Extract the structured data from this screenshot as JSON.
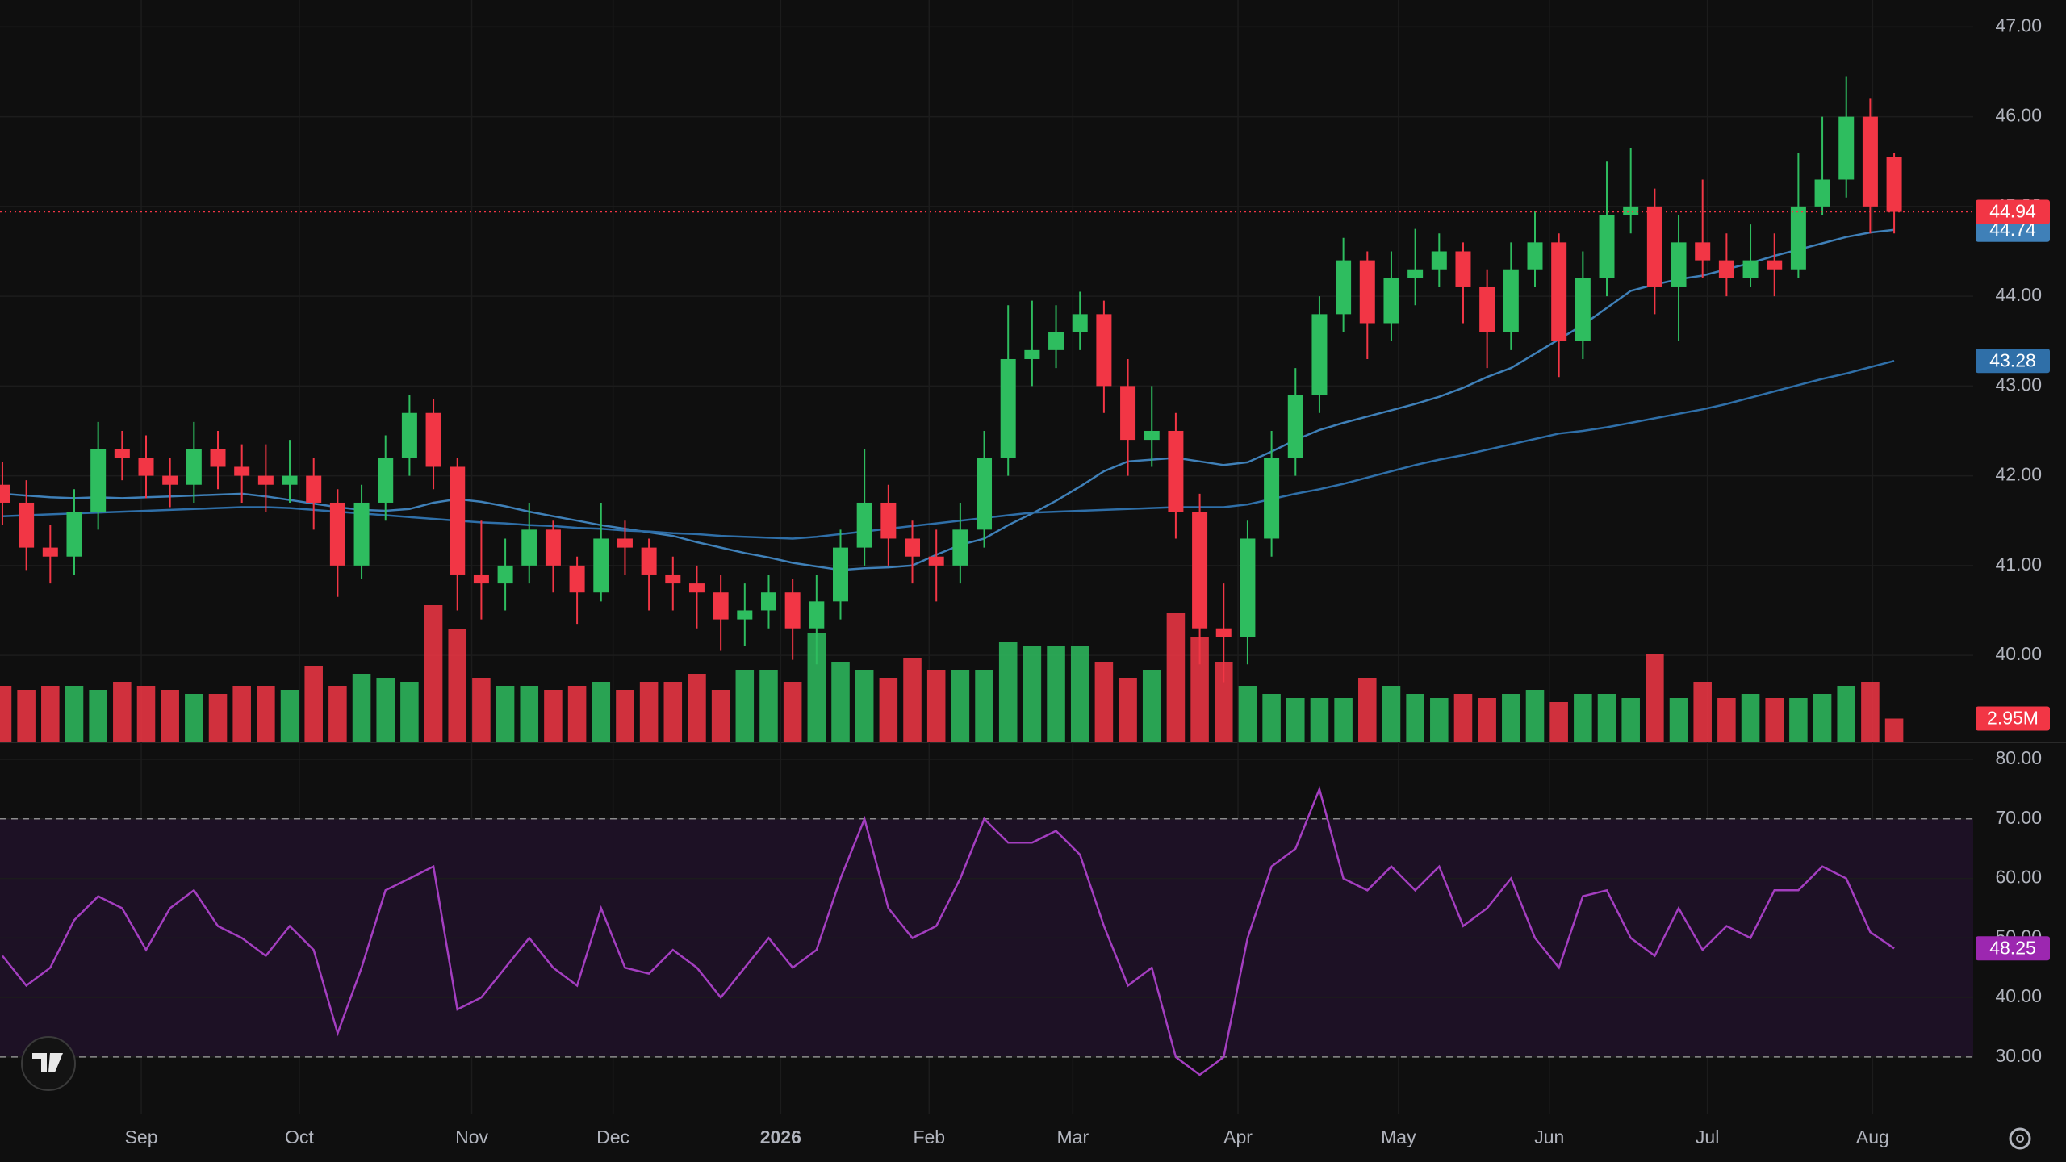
{
  "chart_data": [
    {
      "type": "candlestick",
      "open": [
        41.9,
        41.7,
        41.2,
        41.1,
        41.6,
        42.3,
        42.2,
        42.0,
        41.9,
        42.3,
        42.1,
        42.0,
        41.9,
        42.0,
        41.7,
        41.0,
        41.7,
        42.2,
        42.7,
        42.1,
        40.9,
        40.8,
        41.0,
        41.4,
        41.0,
        40.7,
        41.3,
        41.2,
        40.9,
        40.8,
        40.7,
        40.4,
        40.5,
        40.7,
        40.3,
        40.6,
        41.2,
        41.7,
        41.3,
        41.1,
        41.0,
        41.4,
        42.2,
        43.3,
        43.4,
        43.6,
        43.8,
        43.0,
        42.4,
        42.5,
        41.6,
        40.3,
        40.2,
        41.3,
        42.2,
        42.9,
        43.8,
        44.4,
        43.7,
        44.2,
        44.3,
        44.5,
        44.1,
        43.6,
        44.3,
        44.6,
        43.5,
        44.2,
        44.9,
        45.0,
        44.1,
        44.6,
        44.4,
        44.2,
        44.4,
        44.3,
        45.0,
        45.3,
        46.0,
        45.55
      ],
      "high": [
        42.15,
        41.95,
        41.45,
        41.85,
        42.6,
        42.5,
        42.45,
        42.2,
        42.6,
        42.5,
        42.35,
        42.35,
        42.4,
        42.2,
        41.85,
        41.9,
        42.45,
        42.9,
        42.85,
        42.2,
        41.5,
        41.3,
        41.7,
        41.5,
        41.1,
        41.7,
        41.5,
        41.3,
        41.1,
        41.0,
        40.9,
        40.8,
        40.9,
        40.85,
        40.9,
        41.4,
        42.3,
        41.9,
        41.5,
        41.4,
        41.7,
        42.5,
        43.9,
        43.95,
        43.9,
        44.05,
        43.95,
        43.3,
        43.0,
        42.7,
        41.8,
        40.8,
        41.5,
        42.5,
        43.2,
        44.0,
        44.65,
        44.5,
        44.5,
        44.75,
        44.7,
        44.6,
        44.3,
        44.6,
        44.95,
        44.7,
        44.5,
        45.5,
        45.65,
        45.2,
        44.9,
        45.3,
        44.7,
        44.8,
        44.7,
        45.6,
        46.0,
        46.45,
        46.2,
        45.6
      ],
      "low": [
        41.45,
        40.95,
        40.8,
        40.9,
        41.4,
        41.95,
        41.75,
        41.65,
        41.7,
        41.85,
        41.7,
        41.6,
        41.7,
        41.4,
        40.65,
        40.85,
        41.5,
        42.0,
        41.85,
        40.5,
        40.4,
        40.5,
        40.8,
        40.7,
        40.35,
        40.6,
        40.9,
        40.5,
        40.5,
        40.3,
        40.05,
        40.1,
        40.3,
        39.95,
        39.9,
        40.4,
        41.0,
        41.0,
        40.8,
        40.6,
        40.8,
        41.2,
        42.0,
        43.0,
        43.2,
        43.4,
        42.7,
        42.0,
        42.1,
        41.3,
        39.9,
        39.7,
        39.9,
        41.1,
        42.0,
        42.7,
        43.6,
        43.3,
        43.5,
        43.9,
        44.1,
        43.7,
        43.2,
        43.4,
        44.1,
        43.1,
        43.3,
        44.0,
        44.7,
        43.8,
        43.5,
        44.2,
        44.0,
        44.1,
        44.0,
        44.2,
        44.9,
        45.1,
        44.7,
        44.7
      ],
      "close": [
        41.7,
        41.2,
        41.1,
        41.6,
        42.3,
        42.2,
        42.0,
        41.9,
        42.3,
        42.1,
        42.0,
        41.9,
        42.0,
        41.7,
        41.0,
        41.7,
        42.2,
        42.7,
        42.1,
        40.9,
        40.8,
        41.0,
        41.4,
        41.0,
        40.7,
        41.3,
        41.2,
        40.9,
        40.8,
        40.7,
        40.4,
        40.5,
        40.7,
        40.3,
        40.6,
        41.2,
        41.7,
        41.3,
        41.1,
        41.0,
        41.4,
        42.2,
        43.3,
        43.4,
        43.6,
        43.8,
        43.0,
        42.4,
        42.5,
        41.6,
        40.3,
        40.2,
        41.3,
        42.2,
        42.9,
        43.8,
        44.4,
        43.7,
        44.2,
        44.3,
        44.5,
        44.1,
        43.6,
        44.3,
        44.6,
        43.5,
        44.2,
        44.9,
        45.0,
        44.1,
        44.6,
        44.4,
        44.2,
        44.4,
        44.3,
        45.0,
        45.3,
        46.0,
        45.0,
        44.94
      ],
      "up_color": "#2ebd5f",
      "down_color": "#f23645",
      "last_line_color": "#f23645",
      "lines": [
        {
          "color": "#3f80b8",
          "values": [
            41.8,
            41.78,
            41.76,
            41.75,
            41.76,
            41.75,
            41.76,
            41.77,
            41.78,
            41.79,
            41.8,
            41.77,
            41.73,
            41.69,
            41.65,
            41.62,
            41.61,
            41.63,
            41.7,
            41.74,
            41.71,
            41.66,
            41.6,
            41.55,
            41.5,
            41.45,
            41.41,
            41.37,
            41.33,
            41.26,
            41.2,
            41.14,
            41.09,
            41.03,
            40.99,
            40.95,
            40.97,
            40.98,
            41.0,
            41.12,
            41.23,
            41.3,
            41.45,
            41.58,
            41.72,
            41.88,
            42.05,
            42.16,
            42.18,
            42.2,
            42.16,
            42.12,
            42.15,
            42.27,
            42.4,
            42.51,
            42.59,
            42.66,
            42.73,
            42.8,
            42.88,
            42.98,
            43.1,
            43.2,
            43.36,
            43.52,
            43.68,
            43.87,
            44.06,
            44.13,
            44.19,
            44.23,
            44.3,
            44.37,
            44.45,
            44.52,
            44.59,
            44.66,
            44.71,
            44.74
          ]
        },
        {
          "color": "#2f6fa8",
          "values": [
            41.55,
            41.56,
            41.57,
            41.58,
            41.59,
            41.6,
            41.61,
            41.62,
            41.63,
            41.64,
            41.65,
            41.65,
            41.64,
            41.62,
            41.6,
            41.58,
            41.56,
            41.54,
            41.52,
            41.5,
            41.48,
            41.47,
            41.45,
            41.44,
            41.42,
            41.41,
            41.39,
            41.38,
            41.36,
            41.35,
            41.33,
            41.32,
            41.31,
            41.3,
            41.32,
            41.35,
            41.38,
            41.41,
            41.44,
            41.47,
            41.5,
            41.53,
            41.56,
            41.59,
            41.6,
            41.61,
            41.62,
            41.63,
            41.64,
            41.65,
            41.65,
            41.65,
            41.68,
            41.74,
            41.8,
            41.85,
            41.91,
            41.98,
            42.05,
            42.12,
            42.18,
            42.23,
            42.29,
            42.35,
            42.41,
            42.47,
            42.5,
            42.54,
            42.59,
            42.64,
            42.69,
            42.74,
            42.8,
            42.87,
            42.94,
            43.01,
            43.08,
            43.14,
            43.21,
            43.28
          ]
        }
      ],
      "volume": {
        "values": [
          7,
          6.5,
          7,
          7,
          6.5,
          7.5,
          7,
          6.5,
          6,
          6,
          7,
          7,
          6.5,
          9.5,
          7,
          8.5,
          8,
          7.5,
          17,
          14,
          8,
          7,
          7,
          6.5,
          7,
          7.5,
          6.5,
          7.5,
          7.5,
          8.5,
          6.5,
          9,
          9,
          7.5,
          13.5,
          10,
          9,
          8,
          10.5,
          9,
          9,
          9,
          12.5,
          12,
          12,
          12,
          10,
          8,
          9,
          16,
          13,
          10,
          7,
          6,
          5.5,
          5.5,
          5.5,
          8,
          7,
          6,
          5.5,
          6,
          5.5,
          6,
          6.5,
          5,
          6,
          6,
          5.5,
          11,
          5.5,
          7.5,
          5.5,
          6,
          5.5,
          5.5,
          6,
          7,
          7.5,
          2.95
        ],
        "value_labels": [
          null,
          null,
          null,
          null,
          null,
          null,
          null,
          null,
          null,
          null,
          null,
          null,
          null,
          null,
          null,
          null,
          null,
          null,
          null,
          null,
          null,
          null,
          null,
          null,
          null,
          null,
          null,
          null,
          null,
          null,
          null,
          null,
          null,
          null,
          null,
          null,
          null,
          null,
          null,
          null,
          null,
          null,
          null,
          null,
          null,
          null,
          null,
          null,
          null,
          null,
          null,
          null,
          null,
          null,
          null,
          null,
          null,
          null,
          null,
          null,
          null,
          null,
          null,
          null,
          null,
          null,
          null,
          null,
          null,
          null,
          null,
          null,
          null,
          null,
          null,
          null,
          null,
          null,
          null,
          "2.95M"
        ],
        "ylim": [
          0,
          20
        ]
      },
      "xlim": [
        -0.1,
        82.3
      ],
      "xticks": [
        {
          "value": 5.8,
          "label": "Sep"
        },
        {
          "value": 12.4,
          "label": "Oct"
        },
        {
          "value": 19.6,
          "label": "Nov"
        },
        {
          "value": 25.5,
          "label": "Dec"
        },
        {
          "value": 32.5,
          "label": "2026"
        },
        {
          "value": 38.7,
          "label": "Feb"
        },
        {
          "value": 44.7,
          "label": "Mar"
        },
        {
          "value": 51.6,
          "label": "Apr"
        },
        {
          "value": 58.3,
          "label": "May"
        },
        {
          "value": 64.6,
          "label": "Jun"
        },
        {
          "value": 71.2,
          "label": "Jul"
        },
        {
          "value": 78.1,
          "label": "Aug"
        }
      ],
      "ylim": [
        39.03,
        47.3
      ],
      "yticks": [
        {
          "value": 40,
          "label": "40.00"
        },
        {
          "value": 41,
          "label": "41.00"
        },
        {
          "value": 42,
          "label": "42.00"
        },
        {
          "value": 43,
          "label": "43.00"
        },
        {
          "value": 44,
          "label": "44.00"
        },
        {
          "value": 45,
          "label": "45.00"
        },
        {
          "value": 46,
          "label": "46.00"
        },
        {
          "value": 47,
          "label": "47.00"
        }
      ],
      "grid": true
    },
    {
      "type": "line",
      "values": [
        47,
        42,
        45,
        53,
        57,
        55,
        48,
        55,
        58,
        52,
        50,
        47,
        52,
        48,
        34,
        45,
        58,
        60,
        62,
        38,
        40,
        45,
        50,
        45,
        42,
        55,
        45,
        44,
        48,
        45,
        40,
        45,
        50,
        45,
        48,
        60,
        70,
        55,
        50,
        52,
        60,
        70,
        66,
        66,
        68,
        64,
        52,
        42,
        45,
        30,
        27,
        30,
        50,
        62,
        65,
        75,
        60,
        58,
        62,
        58,
        62,
        52,
        55,
        60,
        50,
        45,
        57,
        58,
        50,
        47,
        55,
        48,
        52,
        50,
        58,
        58,
        62,
        60,
        51,
        48.25
      ],
      "color": "#a43ec0",
      "tag_color": "#9c27b0",
      "band": [
        30,
        70
      ],
      "band_color": "#1d1125",
      "ylim": [
        20.5,
        82.85
      ],
      "yticks": [
        {
          "value": 30,
          "label": "30.00"
        },
        {
          "value": 40,
          "label": "40.00"
        },
        {
          "value": 50,
          "label": "50.00"
        },
        {
          "value": 60,
          "label": "60.00"
        },
        {
          "value": 70,
          "label": "70.00"
        },
        {
          "value": 80,
          "label": "80.00"
        }
      ],
      "grid": true
    }
  ]
}
